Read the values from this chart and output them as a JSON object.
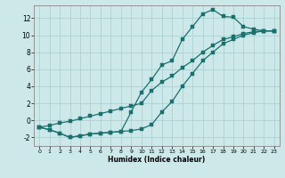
{
  "xlabel": "Humidex (Indice chaleur)",
  "background_color": "#cde8e8",
  "grid_color": "#a8cccc",
  "line_color": "#1a7070",
  "x_values": [
    0,
    1,
    2,
    3,
    4,
    5,
    6,
    7,
    8,
    9,
    10,
    11,
    12,
    13,
    14,
    15,
    16,
    17,
    18,
    19,
    20,
    21,
    22,
    23
  ],
  "y_top": [
    -0.8,
    -1.1,
    -1.5,
    -2.0,
    -1.8,
    -1.6,
    -1.5,
    -1.4,
    -1.3,
    1.0,
    3.3,
    4.8,
    6.5,
    7.0,
    9.5,
    11.0,
    12.5,
    13.0,
    12.2,
    12.1,
    11.0,
    10.7,
    10.5,
    10.5
  ],
  "y_mid": [
    -0.8,
    -0.6,
    -0.3,
    -0.1,
    0.2,
    0.5,
    0.8,
    1.1,
    1.4,
    1.7,
    2.0,
    3.5,
    4.5,
    5.2,
    6.2,
    7.0,
    8.0,
    8.8,
    9.5,
    9.8,
    10.2,
    10.4,
    10.5,
    10.5
  ],
  "y_bot": [
    -0.8,
    -1.1,
    -1.5,
    -2.0,
    -1.8,
    -1.6,
    -1.5,
    -1.4,
    -1.3,
    -1.2,
    -1.0,
    -0.5,
    1.0,
    2.2,
    4.0,
    5.5,
    7.0,
    8.0,
    9.0,
    9.5,
    10.0,
    10.3,
    10.5,
    10.5
  ],
  "ylim": [
    -3,
    13.5
  ],
  "xlim": [
    -0.5,
    23.5
  ],
  "yticks": [
    -2,
    0,
    2,
    4,
    6,
    8,
    10,
    12
  ],
  "xticks": [
    0,
    1,
    2,
    3,
    4,
    5,
    6,
    7,
    8,
    9,
    10,
    11,
    12,
    13,
    14,
    15,
    16,
    17,
    18,
    19,
    20,
    21,
    22,
    23
  ]
}
